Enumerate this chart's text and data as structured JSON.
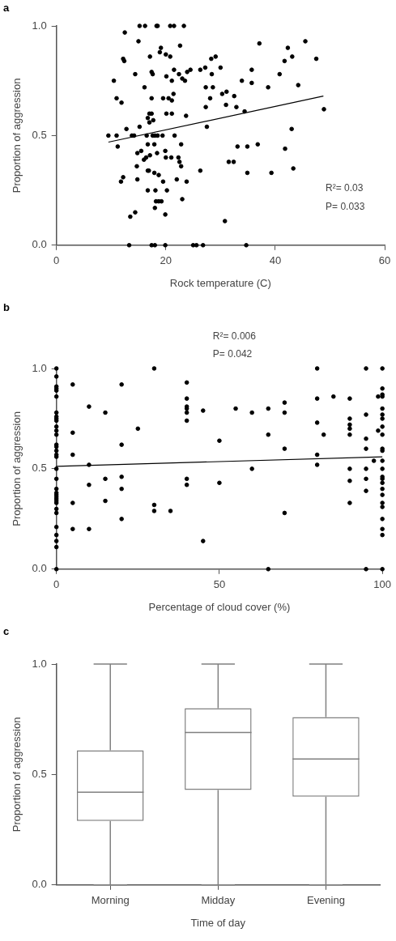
{
  "chart_data": [
    {
      "type": "scatter",
      "title": "a",
      "xlabel": "Rock temperature (C)",
      "ylabel": "Proportion of aggression",
      "xlim": [
        0,
        60
      ],
      "xticks": [
        0,
        20,
        40,
        60
      ],
      "ylim": [
        0,
        1
      ],
      "yticks": [
        {
          "value": 0,
          "label": "0.0"
        },
        {
          "value": 0.5,
          "label": "0.5"
        },
        {
          "value": 1,
          "label": "1.0"
        }
      ],
      "marker": "circle",
      "annotations": [
        "R²= 0.03",
        "P= 0.033"
      ],
      "series": [
        {
          "color": "#000000",
          "x": [
            15.2,
            16.2,
            18.3,
            18.5,
            20.8,
            21.5,
            23.3,
            12.5,
            15.0,
            19.1,
            22.6,
            18.9,
            20.0,
            20.8,
            17.1,
            12.2,
            12.4,
            21.5,
            14.4,
            17.4,
            17.6,
            20.1,
            21.1,
            22.4,
            23.0,
            23.5,
            23.9,
            24.5,
            26.3,
            27.2,
            10.5,
            16.1,
            27.3,
            11.0,
            11.9,
            17.4,
            19.5,
            20.5,
            21.1,
            21.4,
            27.3,
            17.0,
            17.4,
            16.7,
            17.7,
            17.0,
            20.1,
            21.1,
            23.7,
            15.2,
            12.8,
            27.5,
            9.5,
            11.0,
            13.8,
            14.2,
            16.5,
            17.6,
            18.0,
            18.5,
            19.4,
            21.6,
            11.2,
            16.7,
            17.9,
            22.8,
            14.8,
            15.5,
            18.4,
            19.9,
            16.0,
            16.4,
            17.1,
            20.0,
            21.0,
            22.3,
            22.5,
            22.8,
            14.7,
            16.7,
            16.9,
            17.9,
            18.7,
            26.3,
            12.2,
            11.8,
            14.8,
            22.0,
            19.5,
            23.8,
            16.7,
            18.1,
            20.2,
            23.0,
            18.2,
            18.7,
            19.2,
            18.0,
            19.9,
            14.4,
            13.5,
            13.3,
            17.4,
            18.0,
            19.9,
            25.0,
            25.6,
            26.8,
            34.7,
            37.1,
            45.5,
            42.3,
            41.7,
            43.1,
            47.5,
            28.3,
            29.1,
            30.0,
            35.7,
            28.4,
            40.8,
            33.9,
            35.7,
            28.6,
            38.7,
            44.2,
            30.3,
            31.1,
            32.5,
            28.1,
            31.0,
            32.9,
            34.4,
            48.9,
            43.0,
            33.1,
            34.9,
            36.8,
            41.8,
            31.5,
            32.4,
            34.9,
            39.3,
            43.3,
            30.8
          ],
          "values": [
            1,
            1,
            1,
            1,
            1,
            1,
            1,
            0.97,
            0.93,
            0.9,
            0.91,
            0.88,
            0.87,
            0.86,
            0.86,
            0.85,
            0.84,
            0.8,
            0.78,
            0.79,
            0.78,
            0.77,
            0.75,
            0.78,
            0.76,
            0.75,
            0.79,
            0.8,
            0.8,
            0.81,
            0.75,
            0.72,
            0.72,
            0.67,
            0.65,
            0.67,
            0.67,
            0.67,
            0.66,
            0.69,
            0.63,
            0.6,
            0.6,
            0.58,
            0.57,
            0.56,
            0.6,
            0.6,
            0.59,
            0.54,
            0.53,
            0.54,
            0.5,
            0.5,
            0.5,
            0.5,
            0.5,
            0.5,
            0.5,
            0.5,
            0.5,
            0.5,
            0.45,
            0.46,
            0.46,
            0.46,
            0.42,
            0.43,
            0.42,
            0.43,
            0.39,
            0.4,
            0.41,
            0.4,
            0.4,
            0.4,
            0.38,
            0.36,
            0.36,
            0.34,
            0.34,
            0.33,
            0.32,
            0.34,
            0.31,
            0.29,
            0.3,
            0.3,
            0.29,
            0.29,
            0.25,
            0.25,
            0.25,
            0.21,
            0.2,
            0.2,
            0.2,
            0.17,
            0.14,
            0.15,
            0.13,
            0,
            0,
            0,
            0,
            0,
            0,
            0,
            0,
            0.92,
            0.93,
            0.9,
            0.84,
            0.86,
            0.85,
            0.85,
            0.86,
            0.81,
            0.8,
            0.78,
            0.78,
            0.75,
            0.74,
            0.72,
            0.72,
            0.73,
            0.69,
            0.7,
            0.68,
            0.67,
            0.64,
            0.63,
            0.61,
            0.62,
            0.53,
            0.45,
            0.45,
            0.46,
            0.44,
            0.38,
            0.38,
            0.33,
            0.33,
            0.35,
            0.11
          ]
        },
        {
          "type": "line",
          "color": "#000000",
          "marker": "none",
          "x": [
            9.5,
            48.8
          ],
          "values": [
            0.47,
            0.68
          ]
        }
      ]
    },
    {
      "type": "scatter",
      "title": "b",
      "xlabel": "Percentage of cloud cover (%)",
      "ylabel": "Proportion of aggression",
      "xlim": [
        0,
        100
      ],
      "xticks": [
        0,
        50,
        100
      ],
      "ylim": [
        0,
        1
      ],
      "yticks": [
        {
          "value": 0,
          "label": "0.0"
        },
        {
          "value": 0.5,
          "label": "0.5"
        },
        {
          "value": 1,
          "label": "1.0"
        }
      ],
      "marker": "circle",
      "annotations": [
        "R²= 0.006",
        "P= 0.042"
      ],
      "series": [
        {
          "color": "#000000",
          "x": [
            0,
            0,
            0,
            0,
            0,
            0,
            0,
            0,
            0,
            0,
            0,
            0,
            0,
            0,
            0,
            0,
            0,
            0,
            0,
            0,
            0,
            0,
            0,
            0,
            0,
            0,
            0,
            0,
            0,
            0,
            0,
            0,
            0,
            0,
            5,
            5,
            5,
            5,
            5,
            10,
            10,
            10,
            10,
            15,
            15,
            15,
            20,
            20,
            20,
            20,
            20,
            25,
            30,
            30,
            30,
            35,
            40,
            40,
            40,
            40,
            40,
            40,
            40,
            40,
            45,
            45,
            50,
            50,
            55,
            60,
            60,
            65,
            65,
            65,
            70,
            70,
            70,
            70,
            80,
            80,
            80,
            80,
            80,
            82,
            85,
            90,
            90,
            90,
            90,
            90,
            90,
            90,
            90,
            95,
            95,
            95,
            95,
            95,
            95,
            95,
            95,
            97.4,
            98.7,
            98.7,
            100,
            100,
            100,
            100,
            100,
            100,
            100,
            100,
            100,
            100,
            100,
            100,
            100,
            100,
            100,
            100,
            100,
            100,
            100,
            100,
            100,
            100,
            100,
            100
          ],
          "values": [
            1,
            0.96,
            0.91,
            0.9,
            0.89,
            0.86,
            0.78,
            0.76,
            0.75,
            0.74,
            0.71,
            0.69,
            0.67,
            0.62,
            0.61,
            0.59,
            0.57,
            0.56,
            0.5,
            0.45,
            0.4,
            0.38,
            0.37,
            0.36,
            0.35,
            0.34,
            0.33,
            0.3,
            0.28,
            0.21,
            0.17,
            0.14,
            0.11,
            0,
            0.92,
            0.68,
            0.57,
            0.33,
            0.2,
            0.81,
            0.52,
            0.42,
            0.2,
            0.78,
            0.45,
            0.34,
            0.92,
            0.62,
            0.46,
            0.4,
            0.25,
            0.7,
            1,
            0.32,
            0.29,
            0.29,
            0.93,
            0.85,
            0.81,
            0.8,
            0.78,
            0.74,
            0.45,
            0.42,
            0.79,
            0.14,
            0.64,
            0.43,
            0.8,
            0.78,
            0.5,
            0.8,
            0.67,
            0,
            0.83,
            0.78,
            0.6,
            0.28,
            1,
            0.85,
            0.73,
            0.57,
            0.52,
            0.67,
            0.86,
            0.85,
            0.75,
            0.72,
            0.7,
            0.67,
            0.5,
            0.44,
            0.33,
            1,
            0.77,
            0.65,
            0.6,
            0.5,
            0.45,
            0.39,
            0,
            0.54,
            0.86,
            0.69,
            1,
            0.9,
            0.87,
            0.86,
            0.8,
            0.77,
            0.75,
            0.71,
            0.67,
            0.6,
            0.59,
            0.54,
            0.5,
            0.46,
            0.45,
            0.43,
            0.4,
            0.37,
            0.33,
            0.31,
            0.25,
            0.2,
            0.17,
            0
          ]
        },
        {
          "type": "line",
          "color": "#000000",
          "marker": "none",
          "x": [
            0,
            100
          ],
          "values": [
            0.512,
            0.56
          ]
        }
      ]
    },
    {
      "type": "box",
      "title": "c",
      "xlabel": "Time of day",
      "ylabel": "Proportion of aggression",
      "categories": [
        "Morning",
        "Midday",
        "Evening"
      ],
      "ylim": [
        0,
        1
      ],
      "yticks": [
        {
          "value": 0,
          "label": "0.0"
        },
        {
          "value": 0.5,
          "label": "0.5"
        },
        {
          "value": 1,
          "label": "1.0"
        }
      ],
      "series": [
        {
          "color": "#808080",
          "boxes": [
            {
              "low": 0,
              "q1": 0.29,
              "median": 0.42,
              "q3": 0.61,
              "high": 1
            },
            {
              "low": 0,
              "q1": 0.43,
              "median": 0.69,
              "q3": 0.8,
              "high": 1
            },
            {
              "low": 0,
              "q1": 0.4,
              "median": 0.57,
              "q3": 0.76,
              "high": 1
            }
          ]
        }
      ]
    }
  ]
}
